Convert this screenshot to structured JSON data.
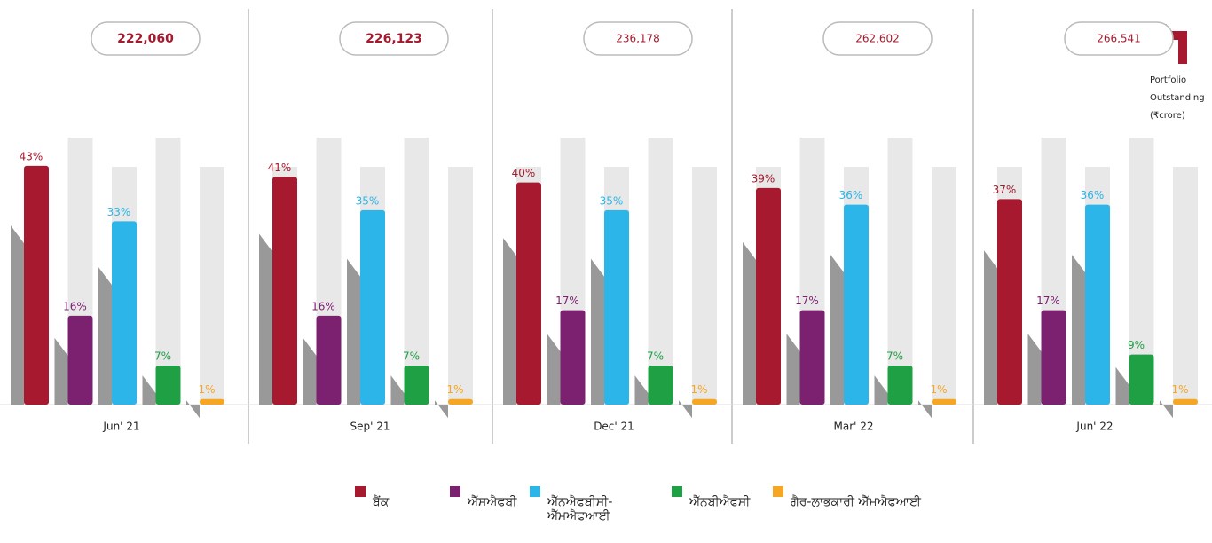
{
  "chart_data": {
    "type": "bar",
    "categories": [
      "Jun' 21",
      "Sep' 21",
      "Dec' 21",
      "Mar' 22",
      "Jun' 22"
    ],
    "portfolio": {
      "values": [
        222060,
        226123,
        236178,
        262602,
        266541
      ],
      "value_labels": [
        "222,060",
        "226,123",
        "236,178",
        "262,602",
        "266,541"
      ]
    },
    "annotation": [
      "Portfolio",
      "Outstanding",
      "(₹crore)"
    ],
    "ylim": [
      0,
      50
    ],
    "series": [
      {
        "name": "ਬੈਂਕ",
        "color": "#a6192e",
        "values": [
          43,
          41,
          40,
          39,
          37
        ],
        "value_labels": [
          "43%",
          "41%",
          "40%",
          "39%",
          "37%"
        ]
      },
      {
        "name": "ਐੱਸਐਫਬੀ",
        "color": "#7b2170",
        "values": [
          16,
          16,
          17,
          17,
          17
        ],
        "value_labels": [
          "16%",
          "16%",
          "17%",
          "17%",
          "17%"
        ]
      },
      {
        "name": "ਐੱਨਐਫਬੀਸੀ-ਐੱਮਐਫਆਈ",
        "color": "#2bb5e8",
        "values": [
          33,
          35,
          35,
          36,
          36
        ],
        "value_labels": [
          "33%",
          "35%",
          "35%",
          "36%",
          "36%"
        ]
      },
      {
        "name": "ਐੱਨਬੀਐਫਸੀ",
        "color": "#1fa045",
        "values": [
          7,
          7,
          7,
          7,
          9
        ],
        "value_labels": [
          "7%",
          "7%",
          "7%",
          "7%",
          "9%"
        ]
      },
      {
        "name": "ਗੈਰ-ਲਾਭਕਾਰੀ ਐੱਮਐਫਆਈ",
        "color": "#f5a623",
        "values": [
          1,
          1,
          1,
          1,
          1
        ],
        "value_labels": [
          "1%",
          "1%",
          "1%",
          "1%",
          "1%"
        ]
      }
    ]
  }
}
